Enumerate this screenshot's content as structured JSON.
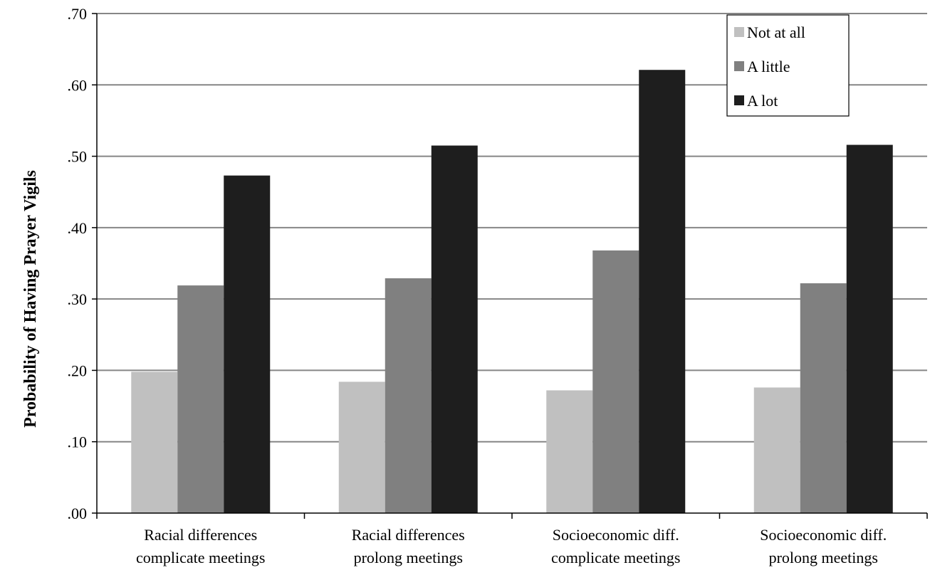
{
  "chart_data": {
    "type": "bar",
    "ylabel": "Probability of Having Prayer Vigils",
    "xlabel": "",
    "ylim": [
      0,
      0.7
    ],
    "yticks": [
      0,
      0.1,
      0.2,
      0.3,
      0.4,
      0.5,
      0.6,
      0.7
    ],
    "ytick_labels": [
      ".00",
      ".10",
      ".20",
      ".30",
      ".40",
      ".50",
      ".60",
      ".70"
    ],
    "grid": true,
    "legend_position": "top-right",
    "categories": [
      [
        "Racial differences",
        "complicate meetings"
      ],
      [
        "Racial differences",
        "prolong meetings"
      ],
      [
        "Socioeconomic diff.",
        "complicate meetings"
      ],
      [
        "Socioeconomic diff.",
        "prolong meetings"
      ]
    ],
    "series": [
      {
        "name": "Not at all",
        "color": "#c0c0c0",
        "values": [
          0.198,
          0.184,
          0.172,
          0.176
        ]
      },
      {
        "name": "A little",
        "color": "#808080",
        "values": [
          0.319,
          0.329,
          0.368,
          0.322
        ]
      },
      {
        "name": "A lot",
        "color": "#1e1e1e",
        "values": [
          0.473,
          0.515,
          0.621,
          0.516
        ]
      }
    ]
  }
}
